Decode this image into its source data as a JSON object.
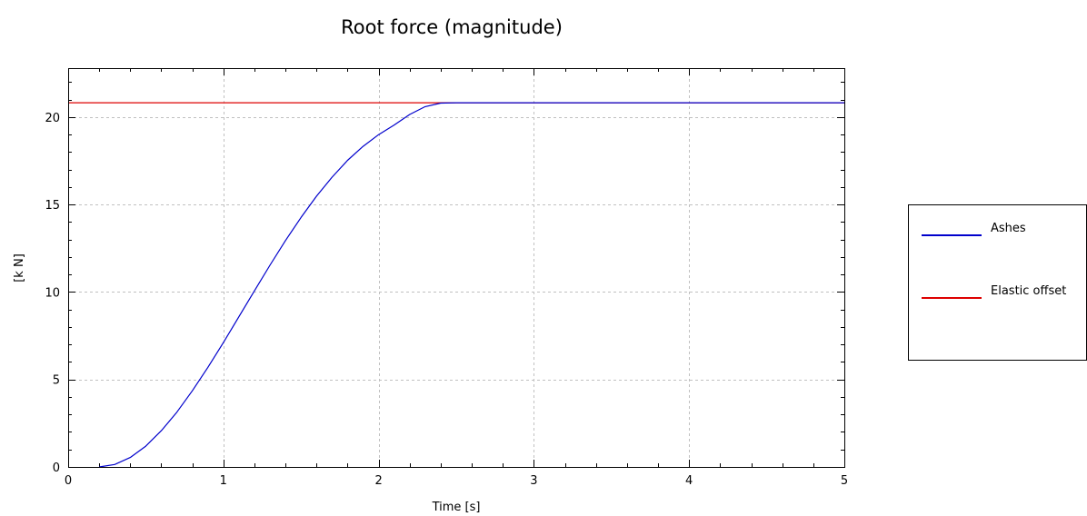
{
  "chart_data": {
    "type": "line",
    "title": "Root force (magnitude)",
    "xlabel": "Time [s]",
    "ylabel": "[k N]",
    "xlim": [
      0,
      5
    ],
    "ylim": [
      0,
      22.8
    ],
    "xticks": [
      0,
      1,
      2,
      3,
      4,
      5
    ],
    "yticks": [
      0,
      5,
      10,
      15,
      20
    ],
    "grid": true,
    "legend_position": "right",
    "series": [
      {
        "name": "Ashes",
        "color": "#0000cc",
        "x": [
          0.2,
          0.3,
          0.4,
          0.5,
          0.6,
          0.7,
          0.8,
          0.9,
          1.0,
          1.1,
          1.2,
          1.3,
          1.4,
          1.5,
          1.6,
          1.7,
          1.8,
          1.9,
          2.0,
          2.1,
          2.2,
          2.3,
          2.4,
          2.5,
          3.0,
          4.0,
          5.0
        ],
        "y": [
          0.0,
          0.14,
          0.54,
          1.19,
          2.07,
          3.13,
          4.35,
          5.69,
          7.11,
          8.59,
          10.07,
          11.53,
          12.94,
          14.26,
          15.48,
          16.57,
          17.53,
          18.33,
          19.0,
          19.55,
          20.15,
          20.6,
          20.8,
          20.82,
          20.82,
          20.82,
          20.82
        ]
      },
      {
        "name": "Elastic offset",
        "color": "#dd0000",
        "x": [
          0,
          5
        ],
        "y": [
          20.82,
          20.82
        ]
      }
    ]
  }
}
